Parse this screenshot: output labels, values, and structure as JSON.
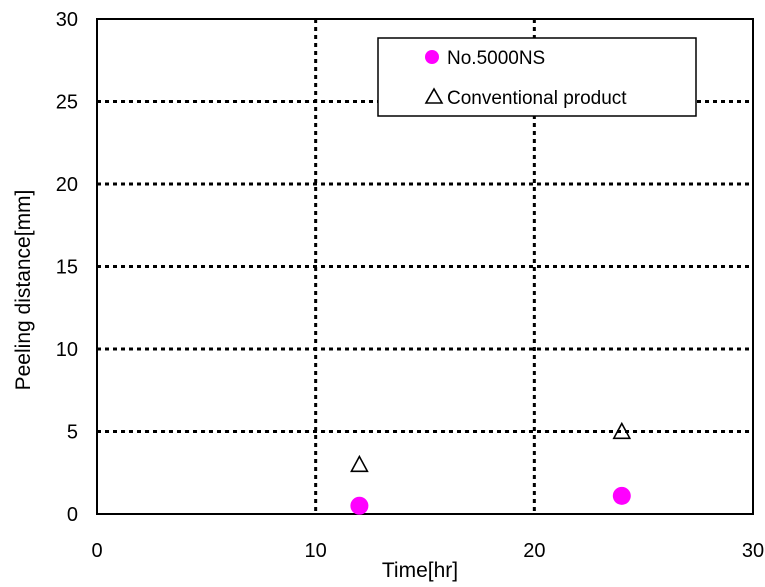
{
  "chart_data": {
    "type": "scatter",
    "xlabel": "Time[hr]",
    "ylabel": "Peeling distance[mm]",
    "xlim": [
      0,
      30
    ],
    "ylim": [
      0,
      30
    ],
    "x_ticks": [
      "0",
      "10",
      "20",
      "30"
    ],
    "y_ticks": [
      "0",
      "5",
      "10",
      "15",
      "20",
      "25",
      "30"
    ],
    "grid": true,
    "legend_position": "top-right",
    "series": [
      {
        "name": "No.5000NS",
        "marker": "circle",
        "color": "#ff00ff",
        "points": [
          {
            "x": 12,
            "y": 0.5
          },
          {
            "x": 24,
            "y": 1.1
          }
        ]
      },
      {
        "name": "Conventional product",
        "marker": "triangle-open",
        "color": "#000000",
        "points": [
          {
            "x": 12,
            "y": 3
          },
          {
            "x": 24,
            "y": 5
          }
        ]
      }
    ]
  }
}
